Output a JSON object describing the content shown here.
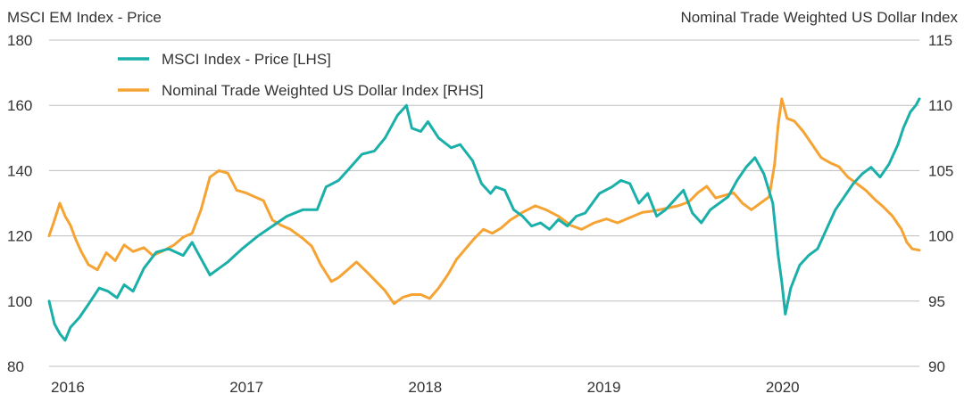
{
  "chart_data": {
    "type": "line",
    "left_axis_title": "MSCI EM Index - Price",
    "right_axis_title": "Nominal Trade Weighted US Dollar Index",
    "y_left": {
      "range": [
        80,
        180
      ],
      "ticks": [
        "80",
        "100",
        "120",
        "140",
        "160",
        "180"
      ]
    },
    "y_right": {
      "range": [
        90,
        115
      ],
      "ticks": [
        "90",
        "95",
        "100",
        "105",
        "110",
        "115"
      ]
    },
    "x_range": [
      2016.0,
      2020.87
    ],
    "x_ticks": [
      {
        "label": "2016",
        "value": 2016.0
      },
      {
        "label": "2017",
        "value": 2017.0
      },
      {
        "label": "2018",
        "value": 2018.0
      },
      {
        "label": "2019",
        "value": 2019.0
      },
      {
        "label": "2020",
        "value": 2020.0
      }
    ],
    "grid": "horizontal",
    "legend_position": "top-left",
    "colors": {
      "msci": "#1AAFA8",
      "dollar": "#F5A333",
      "grid": "#bdbdbd"
    },
    "series": [
      {
        "name": "MSCI Index - Price [LHS]",
        "axis": "left",
        "color": "#1AAFA8",
        "points": [
          [
            2016.0,
            100
          ],
          [
            2016.03,
            93
          ],
          [
            2016.06,
            90
          ],
          [
            2016.09,
            88
          ],
          [
            2016.12,
            92
          ],
          [
            2016.17,
            95
          ],
          [
            2016.22,
            99
          ],
          [
            2016.28,
            104
          ],
          [
            2016.33,
            103
          ],
          [
            2016.38,
            101
          ],
          [
            2016.42,
            105
          ],
          [
            2016.47,
            103
          ],
          [
            2016.53,
            110
          ],
          [
            2016.6,
            115
          ],
          [
            2016.67,
            116
          ],
          [
            2016.75,
            114
          ],
          [
            2016.8,
            118
          ],
          [
            2016.85,
            113
          ],
          [
            2016.9,
            108
          ],
          [
            2016.95,
            110
          ],
          [
            2017.0,
            112
          ],
          [
            2017.08,
            116
          ],
          [
            2017.17,
            120
          ],
          [
            2017.25,
            123
          ],
          [
            2017.33,
            126
          ],
          [
            2017.42,
            128
          ],
          [
            2017.5,
            128
          ],
          [
            2017.55,
            135
          ],
          [
            2017.62,
            137
          ],
          [
            2017.67,
            140
          ],
          [
            2017.75,
            145
          ],
          [
            2017.82,
            146
          ],
          [
            2017.88,
            150
          ],
          [
            2017.95,
            157
          ],
          [
            2018.0,
            160
          ],
          [
            2018.03,
            153
          ],
          [
            2018.08,
            152
          ],
          [
            2018.12,
            155
          ],
          [
            2018.18,
            150
          ],
          [
            2018.25,
            147
          ],
          [
            2018.3,
            148
          ],
          [
            2018.37,
            143
          ],
          [
            2018.42,
            136
          ],
          [
            2018.47,
            133
          ],
          [
            2018.5,
            135
          ],
          [
            2018.55,
            134
          ],
          [
            2018.6,
            128
          ],
          [
            2018.65,
            126
          ],
          [
            2018.7,
            123
          ],
          [
            2018.75,
            124
          ],
          [
            2018.8,
            122
          ],
          [
            2018.85,
            125
          ],
          [
            2018.9,
            123
          ],
          [
            2018.95,
            126
          ],
          [
            2019.0,
            127
          ],
          [
            2019.08,
            133
          ],
          [
            2019.15,
            135
          ],
          [
            2019.2,
            137
          ],
          [
            2019.25,
            136
          ],
          [
            2019.3,
            130
          ],
          [
            2019.35,
            133
          ],
          [
            2019.4,
            126
          ],
          [
            2019.45,
            128
          ],
          [
            2019.5,
            131
          ],
          [
            2019.55,
            134
          ],
          [
            2019.6,
            127
          ],
          [
            2019.65,
            124
          ],
          [
            2019.7,
            128
          ],
          [
            2019.75,
            130
          ],
          [
            2019.8,
            132
          ],
          [
            2019.85,
            137
          ],
          [
            2019.9,
            141
          ],
          [
            2019.95,
            144
          ],
          [
            2020.0,
            139
          ],
          [
            2020.05,
            130
          ],
          [
            2020.08,
            114
          ],
          [
            2020.1,
            106
          ],
          [
            2020.12,
            96
          ],
          [
            2020.15,
            104
          ],
          [
            2020.2,
            111
          ],
          [
            2020.25,
            114
          ],
          [
            2020.3,
            116
          ],
          [
            2020.35,
            122
          ],
          [
            2020.4,
            128
          ],
          [
            2020.45,
            132
          ],
          [
            2020.5,
            136
          ],
          [
            2020.55,
            139
          ],
          [
            2020.6,
            141
          ],
          [
            2020.65,
            138
          ],
          [
            2020.7,
            142
          ],
          [
            2020.75,
            148
          ],
          [
            2020.78,
            153
          ],
          [
            2020.82,
            158
          ],
          [
            2020.85,
            160
          ],
          [
            2020.87,
            162
          ]
        ]
      },
      {
        "name": "Nominal Trade Weighted US Dollar Index [RHS]",
        "axis": "right",
        "color": "#F5A333",
        "points": [
          [
            2016.0,
            100.0
          ],
          [
            2016.03,
            101.2
          ],
          [
            2016.06,
            102.5
          ],
          [
            2016.09,
            101.5
          ],
          [
            2016.12,
            100.8
          ],
          [
            2016.15,
            99.7
          ],
          [
            2016.18,
            98.8
          ],
          [
            2016.22,
            97.8
          ],
          [
            2016.27,
            97.4
          ],
          [
            2016.32,
            98.7
          ],
          [
            2016.37,
            98.1
          ],
          [
            2016.42,
            99.3
          ],
          [
            2016.47,
            98.8
          ],
          [
            2016.53,
            99.1
          ],
          [
            2016.58,
            98.5
          ],
          [
            2016.63,
            98.8
          ],
          [
            2016.7,
            99.3
          ],
          [
            2016.75,
            99.9
          ],
          [
            2016.8,
            100.2
          ],
          [
            2016.85,
            102.0
          ],
          [
            2016.9,
            104.5
          ],
          [
            2016.95,
            105.0
          ],
          [
            2017.0,
            104.8
          ],
          [
            2017.05,
            103.5
          ],
          [
            2017.1,
            103.3
          ],
          [
            2017.15,
            103.0
          ],
          [
            2017.2,
            102.7
          ],
          [
            2017.25,
            101.2
          ],
          [
            2017.3,
            100.8
          ],
          [
            2017.35,
            100.5
          ],
          [
            2017.42,
            99.8
          ],
          [
            2017.47,
            99.2
          ],
          [
            2017.52,
            97.8
          ],
          [
            2017.58,
            96.5
          ],
          [
            2017.62,
            96.8
          ],
          [
            2017.67,
            97.4
          ],
          [
            2017.72,
            98.0
          ],
          [
            2017.78,
            97.2
          ],
          [
            2017.83,
            96.5
          ],
          [
            2017.88,
            95.8
          ],
          [
            2017.93,
            94.8
          ],
          [
            2017.98,
            95.3
          ],
          [
            2018.03,
            95.5
          ],
          [
            2018.08,
            95.5
          ],
          [
            2018.13,
            95.2
          ],
          [
            2018.18,
            96.0
          ],
          [
            2018.23,
            97.0
          ],
          [
            2018.28,
            98.2
          ],
          [
            2018.33,
            99.0
          ],
          [
            2018.38,
            99.8
          ],
          [
            2018.43,
            100.5
          ],
          [
            2018.48,
            100.2
          ],
          [
            2018.53,
            100.6
          ],
          [
            2018.58,
            101.2
          ],
          [
            2018.65,
            101.8
          ],
          [
            2018.72,
            102.3
          ],
          [
            2018.78,
            102.0
          ],
          [
            2018.85,
            101.5
          ],
          [
            2018.92,
            100.8
          ],
          [
            2018.98,
            100.5
          ],
          [
            2019.05,
            101.0
          ],
          [
            2019.12,
            101.3
          ],
          [
            2019.18,
            101.0
          ],
          [
            2019.25,
            101.4
          ],
          [
            2019.32,
            101.8
          ],
          [
            2019.38,
            101.9
          ],
          [
            2019.45,
            102.1
          ],
          [
            2019.52,
            102.3
          ],
          [
            2019.58,
            102.6
          ],
          [
            2019.63,
            103.3
          ],
          [
            2019.68,
            103.8
          ],
          [
            2019.73,
            102.9
          ],
          [
            2019.78,
            103.1
          ],
          [
            2019.83,
            103.3
          ],
          [
            2019.88,
            102.5
          ],
          [
            2019.93,
            102.0
          ],
          [
            2019.98,
            102.5
          ],
          [
            2020.03,
            103.0
          ],
          [
            2020.06,
            105.5
          ],
          [
            2020.08,
            108.5
          ],
          [
            2020.1,
            110.5
          ],
          [
            2020.13,
            109.0
          ],
          [
            2020.17,
            108.8
          ],
          [
            2020.22,
            108.0
          ],
          [
            2020.27,
            107.0
          ],
          [
            2020.32,
            106.0
          ],
          [
            2020.37,
            105.6
          ],
          [
            2020.42,
            105.3
          ],
          [
            2020.47,
            104.5
          ],
          [
            2020.52,
            104.0
          ],
          [
            2020.57,
            103.5
          ],
          [
            2020.62,
            102.8
          ],
          [
            2020.67,
            102.2
          ],
          [
            2020.72,
            101.5
          ],
          [
            2020.77,
            100.5
          ],
          [
            2020.8,
            99.5
          ],
          [
            2020.83,
            99.0
          ],
          [
            2020.87,
            98.9
          ]
        ]
      }
    ]
  }
}
